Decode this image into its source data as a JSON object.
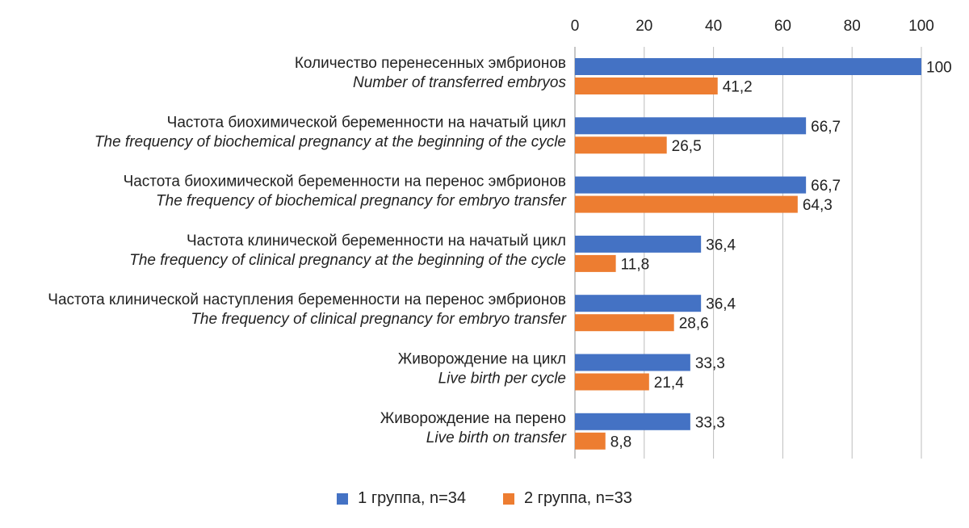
{
  "chart_data": {
    "type": "bar",
    "orientation": "horizontal",
    "xlim": [
      0,
      100
    ],
    "x_ticks": [
      "0",
      "20",
      "40",
      "60",
      "80",
      "100"
    ],
    "x_axis_position": "top",
    "grid": true,
    "legend_position": "bottom",
    "categories": [
      {
        "ru": "Количество перенесенных эмбрионов",
        "en": "Number of transferred embryos"
      },
      {
        "ru": "Частота биохимической беременности на начатый цикл",
        "en": "The frequency of biochemical pregnancy at the beginning of the cycle"
      },
      {
        "ru": "Частота биохимической беременности на перенос эмбрионов",
        "en": "The frequency of biochemical pregnancy for embryo transfer"
      },
      {
        "ru": "Частота клинической беременности на начатый цикл",
        "en": "The frequency of clinical pregnancy at the beginning of the cycle"
      },
      {
        "ru": "Частота клинической наступления беременности на перенос эмбрионов",
        "en": "The frequency of clinical pregnancy for embryo transfer"
      },
      {
        "ru": "Живорождение на цикл",
        "en": "Live birth per cycle"
      },
      {
        "ru": "Живорождение на перено",
        "en": "Live birth on transfer"
      }
    ],
    "series": [
      {
        "name": "1 группа, n=34",
        "color": "#4472c4",
        "values": [
          100,
          66.7,
          66.7,
          36.4,
          36.4,
          33.3,
          33.3
        ],
        "labels": [
          "100",
          "66,7",
          "66,7",
          "36,4",
          "36,4",
          "33,3",
          "33,3"
        ]
      },
      {
        "name": "2 группа, n=33",
        "color": "#ed7d31",
        "values": [
          41.2,
          26.5,
          64.3,
          11.8,
          28.6,
          21.4,
          8.8
        ],
        "labels": [
          "41,2",
          "26,5",
          "64,3",
          "11,8",
          "28,6",
          "21,4",
          "8,8"
        ]
      }
    ]
  }
}
